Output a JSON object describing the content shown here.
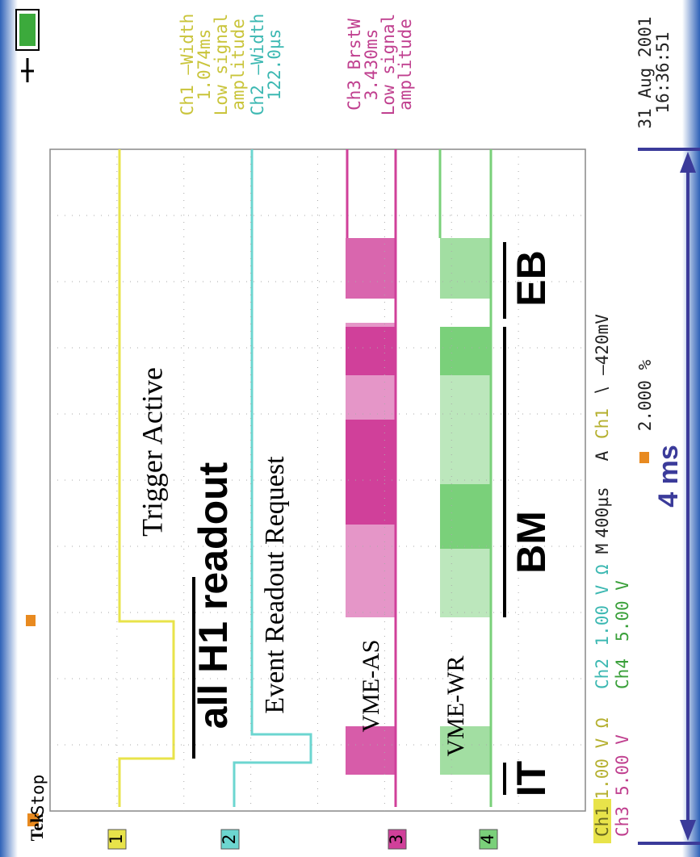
{
  "header": {
    "brand": "Tek",
    "state": "Stop"
  },
  "measurements": [
    {
      "lines": [
        "Ch1 –Width",
        "1.074ms",
        "Low signal",
        "amplitude"
      ]
    },
    {
      "lines": [
        "Ch2 –Width",
        "122.0µs"
      ]
    },
    {
      "lines": [
        "Ch3 BrstW",
        "3.430ms",
        "Low signal",
        "amplitude"
      ]
    }
  ],
  "timestamp": {
    "date": "31 Aug 2001",
    "time": "16:36:51"
  },
  "status": {
    "ch1": "Ch1",
    "ch1_scale": "1.00 V Ω",
    "ch2": "Ch2",
    "ch2_scale": "1.00 V Ω",
    "m": "M",
    "timebase": "400µs",
    "a": "A",
    "trig_src": "Ch1",
    "trig_level": "∖ –420mV",
    "ch3": "Ch3",
    "ch3_scale": "5.00 V",
    "ch4": "Ch4",
    "ch4_scale": "5.00 V",
    "trig_pos": "2.000 %"
  },
  "markers": [
    "1",
    "2",
    "3",
    "4"
  ],
  "annotations": {
    "trigger": "Trigger Active",
    "all": "all H1 readout",
    "event": "Event Readout Request",
    "as": "VME-AS",
    "wr": "VME-WR",
    "it": "IT",
    "bm": "BM",
    "eb": "EB",
    "span": "4 ms"
  }
}
